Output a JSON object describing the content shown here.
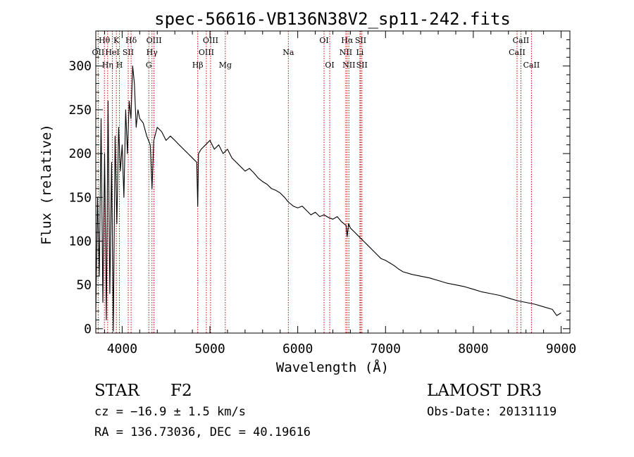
{
  "chart_data": {
    "type": "line",
    "title": "spec-56616-VB136N38V2_sp11-242.fits",
    "xlabel": "Wavelength (Å)",
    "ylabel": "Flux (relative)",
    "xlim": [
      3700,
      9100
    ],
    "ylim": [
      -5,
      340
    ],
    "xticks": [
      4000,
      5000,
      6000,
      7000,
      8000,
      9000
    ],
    "yticks": [
      0,
      50,
      100,
      150,
      200,
      250,
      300
    ],
    "grid": false,
    "series": [
      {
        "name": "spectrum",
        "x": [
          3700,
          3720,
          3740,
          3760,
          3780,
          3800,
          3820,
          3840,
          3860,
          3880,
          3900,
          3920,
          3940,
          3960,
          3980,
          4000,
          4020,
          4040,
          4060,
          4080,
          4100,
          4120,
          4140,
          4160,
          4180,
          4200,
          4240,
          4280,
          4320,
          4340,
          4360,
          4400,
          4450,
          4500,
          4550,
          4600,
          4650,
          4700,
          4750,
          4800,
          4850,
          4861,
          4870,
          4900,
          4950,
          5000,
          5050,
          5100,
          5150,
          5200,
          5250,
          5300,
          5350,
          5400,
          5450,
          5500,
          5550,
          5600,
          5650,
          5700,
          5750,
          5800,
          5850,
          5890,
          5950,
          6000,
          6050,
          6100,
          6150,
          6200,
          6250,
          6300,
          6350,
          6400,
          6450,
          6500,
          6550,
          6563,
          6580,
          6600,
          6650,
          6700,
          6750,
          6800,
          6850,
          6900,
          6950,
          7000,
          7050,
          7100,
          7150,
          7200,
          7300,
          7400,
          7500,
          7600,
          7700,
          7800,
          7900,
          8000,
          8100,
          8200,
          8300,
          8400,
          8500,
          8600,
          8700,
          8800,
          8900,
          8950,
          9000
        ],
        "y": [
          20,
          150,
          60,
          240,
          30,
          200,
          10,
          260,
          40,
          190,
          -3,
          220,
          120,
          230,
          180,
          210,
          150,
          250,
          200,
          260,
          240,
          300,
          280,
          230,
          250,
          240,
          235,
          220,
          210,
          160,
          215,
          230,
          225,
          215,
          220,
          215,
          210,
          205,
          200,
          195,
          190,
          140,
          200,
          205,
          210,
          215,
          205,
          210,
          200,
          205,
          195,
          190,
          185,
          180,
          183,
          178,
          172,
          168,
          165,
          160,
          158,
          155,
          150,
          145,
          140,
          138,
          140,
          135,
          130,
          133,
          128,
          130,
          127,
          125,
          128,
          122,
          118,
          105,
          120,
          115,
          110,
          105,
          100,
          95,
          90,
          85,
          80,
          78,
          75,
          72,
          68,
          65,
          62,
          60,
          58,
          55,
          52,
          50,
          48,
          45,
          42,
          40,
          38,
          35,
          32,
          30,
          28,
          25,
          22,
          15,
          18
        ]
      }
    ],
    "line_labels": [
      {
        "label": "Hθ",
        "x": 3798,
        "row": 0
      },
      {
        "label": "OII",
        "x": 3727,
        "row": 1
      },
      {
        "label": "Hη",
        "x": 3835,
        "row": 2
      },
      {
        "label": "HeI",
        "x": 3889,
        "row": 1
      },
      {
        "label": "K",
        "x": 3934,
        "row": 0
      },
      {
        "label": "SII",
        "x": 4069,
        "row": 1
      },
      {
        "label": "H",
        "x": 3969,
        "row": 2
      },
      {
        "label": "Hδ",
        "x": 4102,
        "row": 0
      },
      {
        "label": "OIII",
        "x": 4363,
        "row": 0
      },
      {
        "label": "Hγ",
        "x": 4340,
        "row": 1
      },
      {
        "label": "G",
        "x": 4304,
        "row": 2
      },
      {
        "label": "Hβ",
        "x": 4861,
        "row": 2
      },
      {
        "label": "OIII",
        "x": 5007,
        "row": 0
      },
      {
        "label": "OIII",
        "x": 4959,
        "row": 1
      },
      {
        "label": "Mg",
        "x": 5175,
        "row": 2
      },
      {
        "label": "Na",
        "x": 5893,
        "row": 1
      },
      {
        "label": "OI",
        "x": 6300,
        "row": 0
      },
      {
        "label": "OI",
        "x": 6364,
        "row": 2
      },
      {
        "label": "Hα",
        "x": 6563,
        "row": 0
      },
      {
        "label": "NII",
        "x": 6548,
        "row": 1
      },
      {
        "label": "NII",
        "x": 6583,
        "row": 2
      },
      {
        "label": "SII",
        "x": 6717,
        "row": 0
      },
      {
        "label": "Li",
        "x": 6708,
        "row": 1
      },
      {
        "label": "SII",
        "x": 6731,
        "row": 2
      },
      {
        "label": "CaII",
        "x": 8542,
        "row": 0
      },
      {
        "label": "CaII",
        "x": 8498,
        "row": 1
      },
      {
        "label": "CaII",
        "x": 8662,
        "row": 2
      }
    ],
    "line_marker_color": "#cc0000"
  },
  "footer": {
    "class_label": "STAR",
    "subclass": "F2",
    "survey": "LAMOST DR3",
    "cz": "cz = −16.9 ± 1.5 km/s",
    "obs_date": "Obs-Date: 20131119",
    "coords": "RA = 136.73036, DEC =  40.19616"
  }
}
